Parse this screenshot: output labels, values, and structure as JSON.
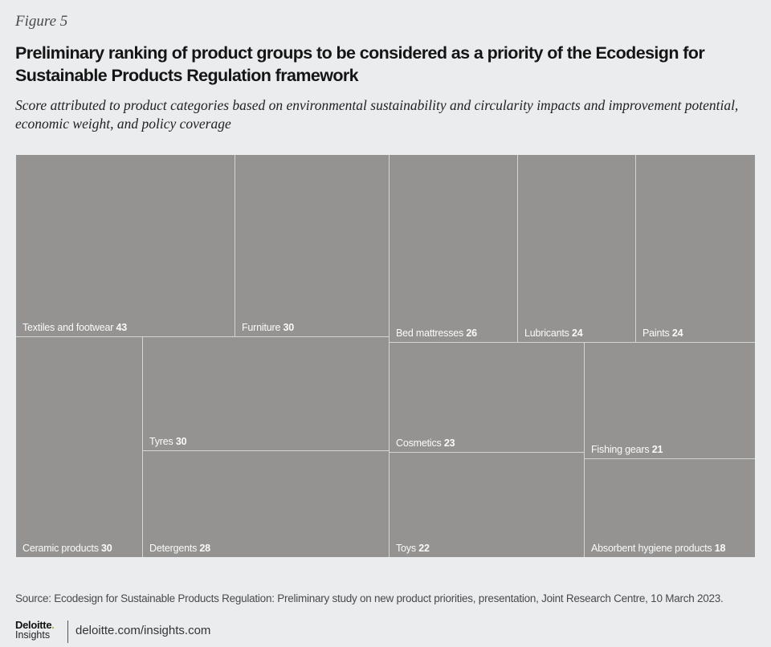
{
  "figure_label": "Figure 5",
  "chart_data": {
    "type": "treemap",
    "title": "Preliminary ranking of product groups to be considered as a priority of the Ecodesign for Sustainable Products Regulation framework",
    "subtitle": "Score attributed to product categories based on environmental sustainability and circularity impacts and improvement potential, economic weight, and policy coverage",
    "value_label": "Score",
    "fill_color": "#949392",
    "border_color": "#d5d5d3",
    "label_color": "#fafafa",
    "categories": [
      "Textiles and footwear",
      "Furniture",
      "Ceramic products",
      "Tyres",
      "Detergents",
      "Bed mattresses",
      "Lubricants",
      "Paints",
      "Cosmetics",
      "Toys",
      "Fishing gears",
      "Absorbent hygiene products"
    ],
    "values": [
      43,
      30,
      30,
      30,
      28,
      26,
      24,
      24,
      23,
      22,
      21,
      18
    ]
  },
  "source": "Source: Ecodesign for Sustainable Products Regulation: Preliminary study on new product priorities, presentation, Joint Research Centre, 10 March 2023.",
  "footer": {
    "logo_top": "Deloitte",
    "logo_dot": ".",
    "logo_bottom": "Insights",
    "link": "deloitte.com/insights.com"
  }
}
